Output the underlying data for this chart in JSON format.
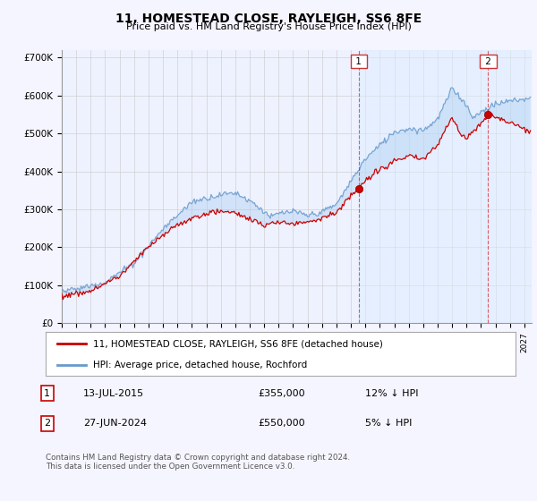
{
  "title": "11, HOMESTEAD CLOSE, RAYLEIGH, SS6 8FE",
  "subtitle": "Price paid vs. HM Land Registry's House Price Index (HPI)",
  "ylabel_ticks": [
    "£0",
    "£100K",
    "£200K",
    "£300K",
    "£400K",
    "£500K",
    "£600K",
    "£700K"
  ],
  "ylim": [
    0,
    720000
  ],
  "xlim_start": 1995.0,
  "xlim_end": 2027.5,
  "hpi_color": "#aaccee",
  "hpi_line_color": "#6699cc",
  "price_color": "#cc0000",
  "bg_color": "#f5f5ff",
  "plot_bg": "#eef2ff",
  "grid_color": "#cccccc",
  "sale1": {
    "date_x": 2015.54,
    "price": 355000,
    "label": "1"
  },
  "sale2": {
    "date_x": 2024.49,
    "price": 550000,
    "label": "2"
  },
  "legend_line1": "11, HOMESTEAD CLOSE, RAYLEIGH, SS6 8FE (detached house)",
  "legend_line2": "HPI: Average price, detached house, Rochford",
  "table_row1": [
    "1",
    "13-JUL-2015",
    "£355,000",
    "12% ↓ HPI"
  ],
  "table_row2": [
    "2",
    "27-JUN-2024",
    "£550,000",
    "5% ↓ HPI"
  ],
  "footer": "Contains HM Land Registry data © Crown copyright and database right 2024.\nThis data is licensed under the Open Government Licence v3.0.",
  "x_ticks": [
    1995,
    1996,
    1997,
    1998,
    1999,
    2000,
    2001,
    2002,
    2003,
    2004,
    2005,
    2006,
    2007,
    2008,
    2009,
    2010,
    2011,
    2012,
    2013,
    2014,
    2015,
    2016,
    2017,
    2018,
    2019,
    2020,
    2021,
    2022,
    2023,
    2024,
    2025,
    2026,
    2027
  ]
}
